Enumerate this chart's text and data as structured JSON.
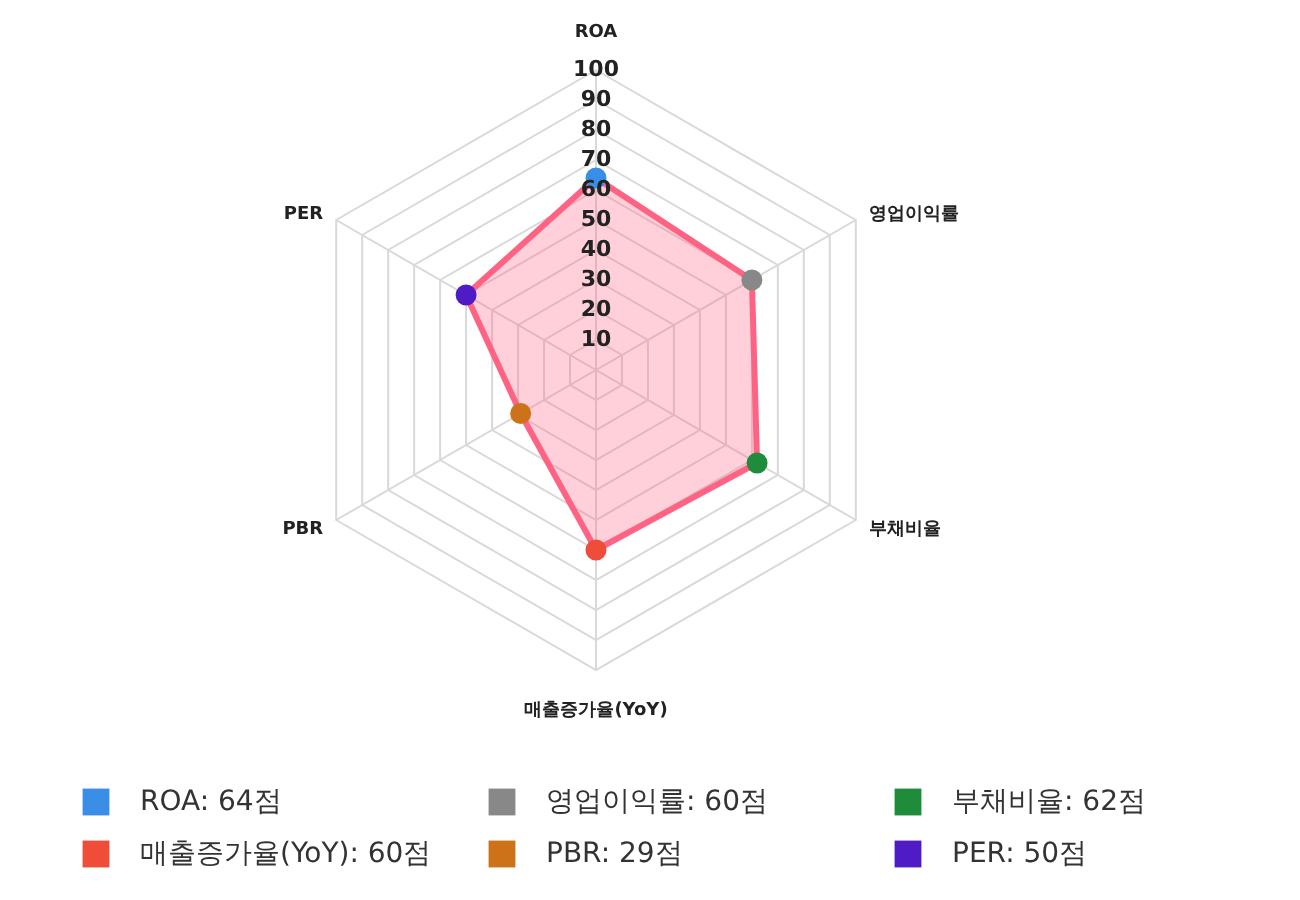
{
  "chart_data": {
    "type": "radar",
    "categories": [
      "ROA",
      "영업이익률",
      "부채비율",
      "매출증가율(YoY)",
      "PBR",
      "PER"
    ],
    "series": [
      {
        "color": "#ff6384",
        "values": [
          64,
          60,
          62,
          60,
          29,
          50
        ]
      }
    ],
    "colors": [
      "#3a8ee6",
      "#888888",
      "#1e8c3a",
      "#ef4d3a",
      "#cd7219",
      "#4f1bc4"
    ],
    "annotations": [
      "ROA: 64점",
      "영업이익률: 60점",
      "부채비율: 62점",
      "매출증가율(YoY): 60점",
      "PBR: 29점",
      "PER: 50점"
    ],
    "ylim": [
      0,
      100
    ],
    "yticks": [
      10,
      20,
      30,
      40,
      50,
      60,
      70,
      80,
      90,
      100
    ],
    "marker": "circle",
    "grid": true
  }
}
